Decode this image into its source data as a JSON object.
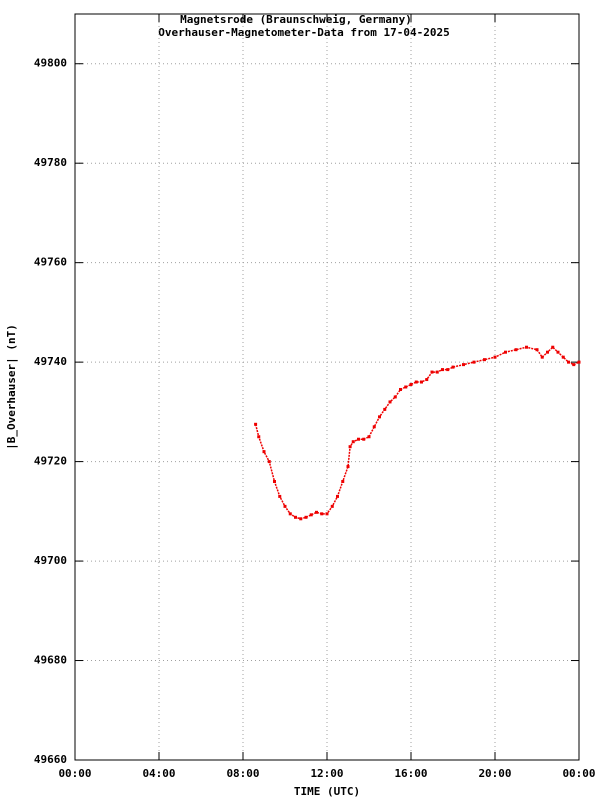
{
  "chart_data": {
    "type": "scatter",
    "title": "Magnetsrode (Braunschweig, Germany)",
    "subtitle": "Overhauser-Magnetometer-Data from 17-04-2025",
    "x_label": "TIME (UTC)",
    "y_label": "|B_Overhauser| (nT)",
    "xlim": [
      0,
      24
    ],
    "xticks": [
      {
        "value": 0,
        "label": "00:00"
      },
      {
        "value": 4,
        "label": "04:00"
      },
      {
        "value": 8,
        "label": "08:00"
      },
      {
        "value": 12,
        "label": "12:00"
      },
      {
        "value": 16,
        "label": "16:00"
      },
      {
        "value": 20,
        "label": "20:00"
      },
      {
        "value": 24,
        "label": "00:00"
      }
    ],
    "ylim": [
      49660,
      49810
    ],
    "yticks": [
      49660,
      49680,
      49700,
      49720,
      49740,
      49760,
      49780,
      49800
    ],
    "grid": true,
    "series": [
      {
        "color": "#ee0000",
        "x": [
          8.6,
          8.75,
          9,
          9.25,
          9.5,
          9.75,
          10,
          10.25,
          10.5,
          10.75,
          11,
          11.25,
          11.5,
          11.75,
          12,
          12.25,
          12.5,
          12.75,
          13,
          13.1,
          13.25,
          13.5,
          13.75,
          14,
          14.25,
          14.5,
          14.75,
          15,
          15.25,
          15.5,
          15.75,
          16,
          16.25,
          16.5,
          16.75,
          17,
          17.25,
          17.5,
          17.75,
          18,
          18.5,
          19,
          19.5,
          20,
          20.5,
          21,
          21.5,
          22,
          22.25,
          22.5,
          22.75,
          23,
          23.25,
          23.5,
          23.75,
          24
        ],
        "values": [
          49727.5,
          49725,
          49722,
          49720,
          49716,
          49713,
          49711,
          49709.5,
          49708.8,
          49708.5,
          49708.8,
          49709.3,
          49709.8,
          49709.5,
          49709.5,
          49711,
          49713,
          49716,
          49719,
          49723,
          49724,
          49724.5,
          49724.5,
          49725,
          49727,
          49729,
          49730.5,
          49732,
          49733,
          49734.5,
          49735,
          49735.5,
          49736,
          49736,
          49736.5,
          49738,
          49738,
          49738.5,
          49738.5,
          49739,
          49739.5,
          49740,
          49740.5,
          49741,
          49742,
          49742.5,
          49743,
          49742.5,
          49741,
          49742,
          49743,
          49742,
          49741,
          49740,
          49739.5,
          49740
        ]
      }
    ]
  }
}
